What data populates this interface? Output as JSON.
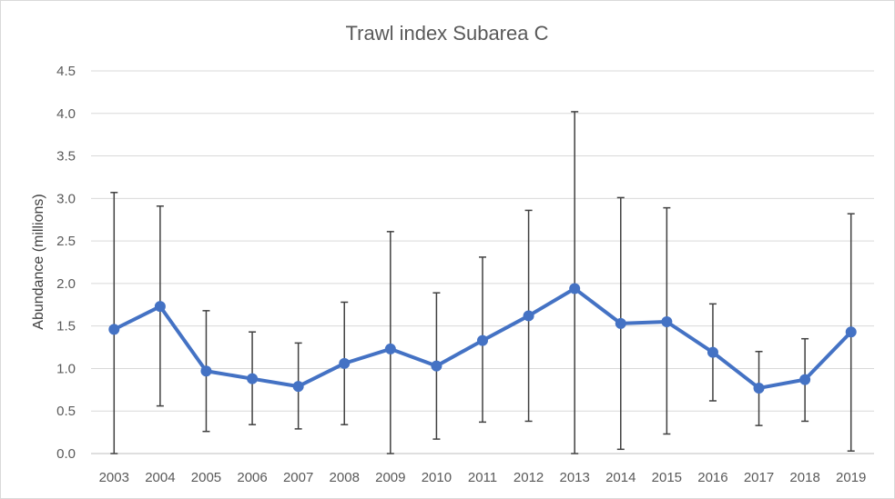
{
  "chart_data": {
    "type": "line",
    "title": "Trawl index Subarea C",
    "xlabel": "",
    "ylabel": "Abundance (millions)",
    "ylim": [
      0,
      4.5
    ],
    "yticks": [
      "0.0",
      "0.5",
      "1.0",
      "1.5",
      "2.0",
      "2.5",
      "3.0",
      "3.5",
      "4.0",
      "4.5"
    ],
    "grid": true,
    "legend": "none",
    "color": "#4472c4",
    "categories": [
      "2003",
      "2004",
      "2005",
      "2006",
      "2007",
      "2008",
      "2009",
      "2010",
      "2011",
      "2012",
      "2013",
      "2014",
      "2015",
      "2016",
      "2017",
      "2018",
      "2019"
    ],
    "series": [
      {
        "values": [
          1.46,
          1.73,
          0.97,
          0.88,
          0.79,
          1.06,
          1.23,
          1.03,
          1.33,
          1.62,
          1.94,
          1.53,
          1.55,
          1.19,
          0.77,
          0.87,
          1.43
        ],
        "error_low": [
          0.0,
          0.56,
          0.26,
          0.34,
          0.29,
          0.34,
          0.0,
          0.17,
          0.37,
          0.38,
          0.0,
          0.05,
          0.23,
          0.62,
          0.33,
          0.38,
          0.03
        ],
        "error_high": [
          3.07,
          2.91,
          1.68,
          1.43,
          1.3,
          1.78,
          2.61,
          1.89,
          2.31,
          2.86,
          4.02,
          3.01,
          2.89,
          1.76,
          1.2,
          1.35,
          2.82
        ]
      }
    ]
  }
}
